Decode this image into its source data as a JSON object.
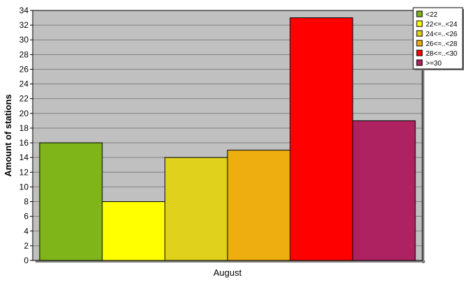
{
  "chart_data": {
    "type": "bar",
    "categories": [
      "August"
    ],
    "series": [
      {
        "name": "<22",
        "values": [
          16
        ],
        "color": "#7fb518"
      },
      {
        "name": "22<=..<24",
        "values": [
          8
        ],
        "color": "#ffff00"
      },
      {
        "name": "24<=..<26",
        "values": [
          14
        ],
        "color": "#e0d21c"
      },
      {
        "name": "26<=..<28",
        "values": [
          15
        ],
        "color": "#eeae10"
      },
      {
        "name": "28<=..<30",
        "values": [
          33
        ],
        "color": "#ff0000"
      },
      {
        "name": ">=30",
        "values": [
          19
        ],
        "color": "#ae2262"
      }
    ],
    "ylabel": "Amount of stations",
    "xlabel": "",
    "ylim": [
      0,
      34
    ],
    "yticks": [
      0,
      2,
      4,
      6,
      8,
      10,
      12,
      14,
      16,
      18,
      20,
      22,
      24,
      26,
      28,
      30,
      32,
      34
    ],
    "grid": true,
    "legend_position": "top-right",
    "plot_background": "#c0c0c0"
  }
}
